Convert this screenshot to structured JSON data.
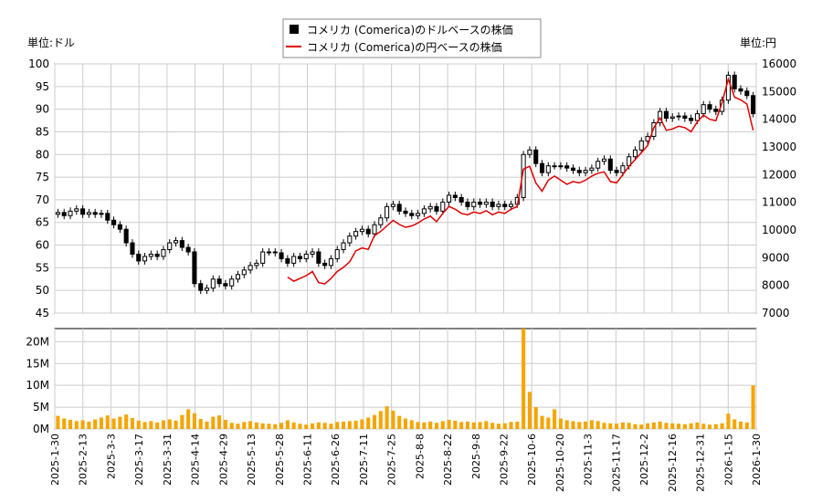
{
  "chart_data": {
    "type": "candlestick+line+bar",
    "legend": [
      {
        "name": "コメリカ (Comerica)のドルベースの株価",
        "marker": "black-square"
      },
      {
        "name": "コメリカ (Comerica)の円ベースの株価",
        "marker": "red-line",
        "color": "#e00000"
      }
    ],
    "price_panel": {
      "left_unit": "単位:ドル",
      "right_unit": "単位:円",
      "left_ylim": [
        45,
        100
      ],
      "left_ticks": [
        "100",
        "95",
        "90",
        "85",
        "80",
        "75",
        "70",
        "65",
        "60",
        "55",
        "50",
        "45"
      ],
      "right_ylim": [
        7000,
        16000
      ],
      "right_ticks": [
        "16000",
        "15000",
        "14000",
        "13000",
        "12000",
        "11000",
        "10000",
        "9000",
        "8000",
        "7000"
      ],
      "grid": true
    },
    "volume_panel": {
      "ylim": [
        0,
        23000000
      ],
      "ticks": [
        "20M",
        "15M",
        "10M",
        "5M",
        "0M"
      ],
      "bar_color": "#f5a500",
      "grid": true
    },
    "x_tick_labels": [
      "2025-1-30",
      "2025-2-13",
      "2025-3-3",
      "2025-3-17",
      "2025-3-31",
      "2025-4-14",
      "2025-4-29",
      "2025-5-13",
      "2025-5-28",
      "2025-6-11",
      "2025-6-26",
      "2025-7-11",
      "2025-7-25",
      "2025-8-8",
      "2025-8-22",
      "2025-9-8",
      "2025-9-22",
      "2025-10-6",
      "2025-10-20",
      "2025-11-3",
      "2025-11-17",
      "2025-12-2",
      "2025-12-16",
      "2025-12-31",
      "2026-1-15",
      "2026-1-30"
    ],
    "usd_close": [
      67.2,
      66.5,
      67.5,
      68.0,
      66.8,
      67.2,
      66.8,
      67.0,
      65.5,
      64.5,
      63.5,
      60.5,
      58.0,
      56.5,
      57.5,
      58.0,
      57.5,
      59.0,
      60.5,
      61.0,
      59.5,
      58.5,
      51.5,
      50.0,
      50.5,
      52.5,
      51.5,
      51.0,
      52.5,
      53.5,
      54.5,
      55.5,
      56.0,
      58.5,
      58.5,
      58.3,
      57.0,
      56.0,
      57.5,
      57.0,
      58.0,
      58.5,
      56.0,
      55.5,
      57.0,
      59.0,
      60.5,
      62.0,
      63.0,
      63.5,
      62.5,
      64.5,
      66.0,
      68.5,
      69.0,
      67.5,
      67.0,
      66.5,
      67.0,
      68.0,
      68.5,
      67.5,
      69.5,
      71.0,
      70.5,
      69.5,
      68.5,
      69.5,
      69.0,
      69.5,
      68.5,
      69.0,
      68.5,
      69.0,
      70.5,
      80.0,
      81.0,
      78.0,
      76.0,
      77.5,
      77.5,
      77.5,
      77.0,
      76.5,
      76.0,
      76.5,
      77.0,
      78.5,
      79.0,
      76.5,
      76.0,
      77.5,
      79.5,
      81.0,
      83.0,
      84.0,
      87.0,
      89.5,
      88.0,
      88.3,
      88.5,
      88.0,
      87.5,
      89.0,
      91.0,
      90.0,
      89.5,
      92.0,
      97.5,
      94.5,
      94.0,
      93.0,
      89.0
    ],
    "jpy_close": [
      null,
      null,
      null,
      null,
      null,
      null,
      null,
      null,
      null,
      null,
      null,
      null,
      null,
      null,
      null,
      null,
      null,
      null,
      null,
      null,
      null,
      null,
      null,
      null,
      null,
      null,
      null,
      null,
      null,
      null,
      null,
      null,
      null,
      null,
      null,
      null,
      null,
      8300,
      8150,
      8250,
      8350,
      8500,
      8100,
      8050,
      8250,
      8500,
      8650,
      8850,
      9250,
      9350,
      9300,
      9800,
      9950,
      10150,
      10350,
      10200,
      10100,
      10150,
      10250,
      10400,
      10500,
      10300,
      10600,
      10850,
      10750,
      10600,
      10550,
      10650,
      10600,
      10700,
      10550,
      10650,
      10600,
      10750,
      10850,
      12200,
      12300,
      11700,
      11400,
      11800,
      11950,
      11800,
      11650,
      11750,
      11700,
      11800,
      11950,
      12050,
      12100,
      11750,
      11700,
      12000,
      12300,
      12550,
      12800,
      13050,
      13700,
      14050,
      13600,
      13650,
      13750,
      13700,
      13550,
      13900,
      14150,
      14000,
      13950,
      14600,
      15450,
      14800,
      14700,
      14550,
      13600
    ],
    "volume": [
      3000000,
      2400000,
      2100000,
      1800000,
      2000000,
      1700000,
      2200000,
      2600000,
      3100000,
      2400000,
      2800000,
      3300000,
      2500000,
      1900000,
      1600000,
      1800000,
      1500000,
      2000000,
      2200000,
      1900000,
      3200000,
      4500000,
      3600000,
      2300000,
      1700000,
      2800000,
      3100000,
      2100000,
      1400000,
      1200000,
      1600000,
      1800000,
      1500000,
      1300000,
      1200000,
      1100000,
      1400000,
      2000000,
      1500000,
      1200000,
      1000000,
      1300000,
      1500000,
      1400000,
      1200000,
      1600000,
      1700000,
      1800000,
      1900000,
      2200000,
      2600000,
      3200000,
      4100000,
      5200000,
      4200000,
      3000000,
      2400000,
      2000000,
      1600000,
      1500000,
      1700000,
      1400000,
      1800000,
      2100000,
      1900000,
      1600000,
      1700000,
      1500000,
      1600000,
      1800000,
      1400000,
      1200000,
      1300000,
      1600000,
      1700000,
      23000000,
      8500000,
      5000000,
      3000000,
      2600000,
      4500000,
      2400000,
      2000000,
      1800000,
      1600000,
      1700000,
      2000000,
      1800000,
      1400000,
      1300000,
      1200000,
      1500000,
      1400000,
      1100000,
      1000000,
      1300000,
      1500000,
      1700000,
      1400000,
      1300000,
      1200000,
      1100000,
      1300000,
      1500000,
      1200000,
      1000000,
      1100000,
      1300000,
      3500000,
      2200000,
      1700000,
      1500000,
      10000000
    ]
  }
}
